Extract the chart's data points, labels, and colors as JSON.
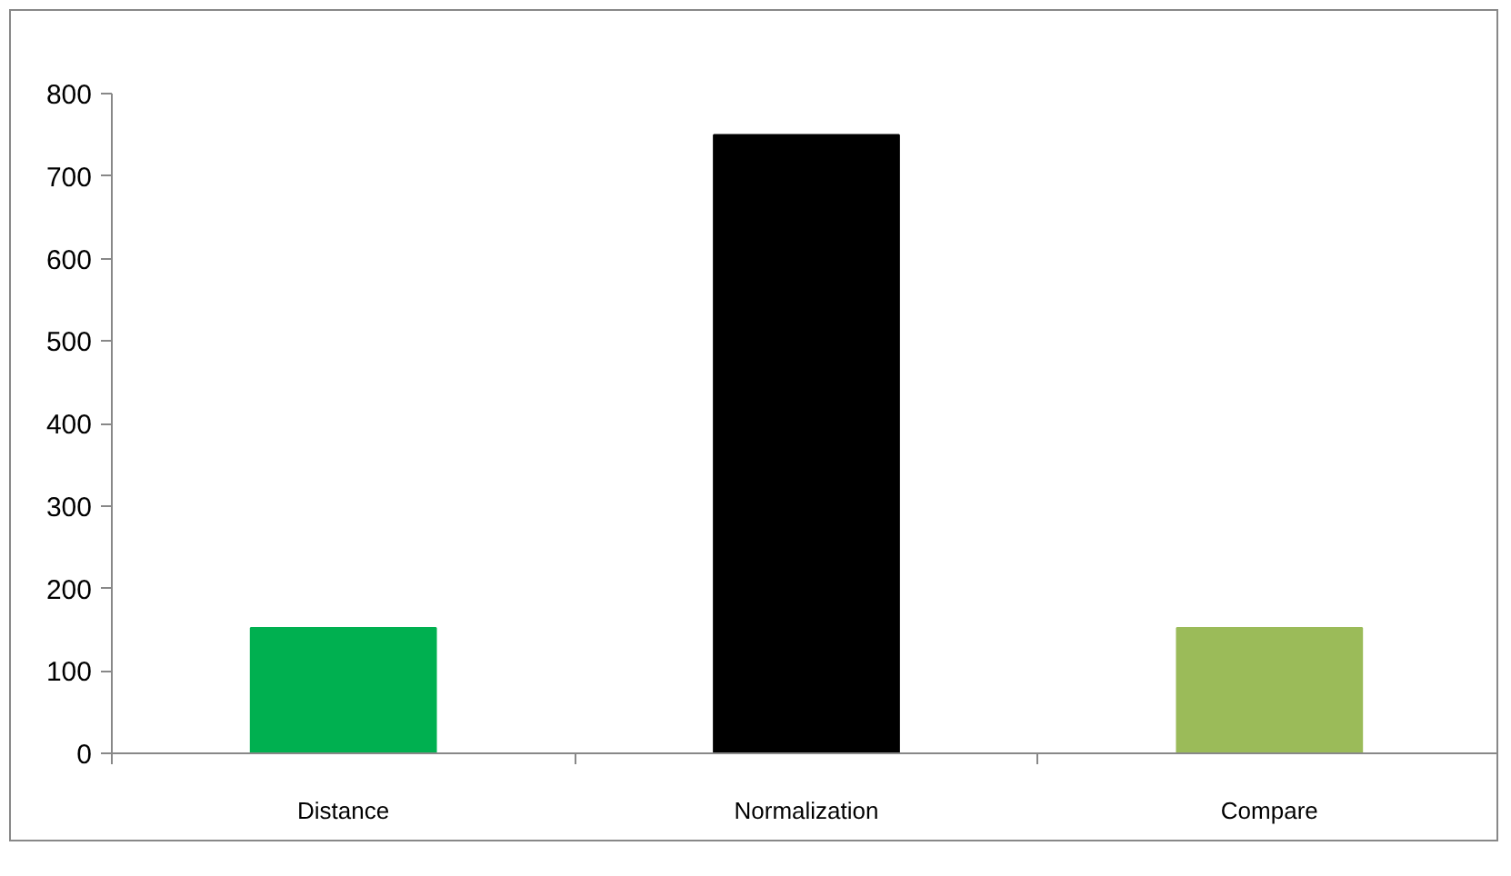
{
  "chart_data": {
    "type": "bar",
    "categories": [
      "Distance",
      "Normalization",
      "Compare"
    ],
    "values": [
      152,
      750,
      152
    ],
    "colors": [
      "#00b050",
      "#000000",
      "#9bbb59"
    ],
    "ylim": [
      0,
      800
    ],
    "yticks": [
      0,
      100,
      200,
      300,
      400,
      500,
      600,
      700,
      800
    ],
    "grid": false
  }
}
